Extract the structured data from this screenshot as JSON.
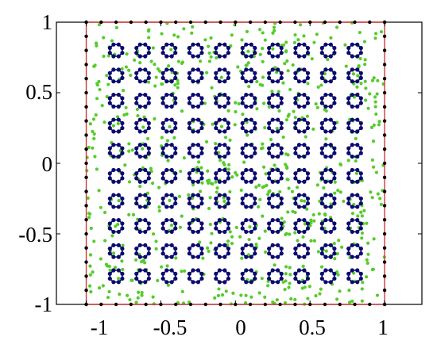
{
  "chart_data": {
    "type": "scatter",
    "title": "",
    "xlabel": "",
    "ylabel": "",
    "xlim": [
      -1.2,
      1.25
    ],
    "ylim": [
      -1,
      1
    ],
    "x_ticks": [
      -1,
      -0.5,
      0,
      0.5,
      1
    ],
    "y_ticks": [
      -1,
      -0.5,
      0,
      0.5,
      1
    ],
    "x_tick_labels": [
      "-1",
      "-0.5",
      "0",
      "0.5",
      "1"
    ],
    "y_tick_labels": [
      "-1",
      "-0.5",
      "0",
      "0.5",
      "1"
    ],
    "grid": false,
    "colors": {
      "boundary_line": "#d03a3a",
      "boundary_points": "#000000",
      "ring_points": "#0a0a6e",
      "interior_points": "#55cc2a"
    },
    "boundary": {
      "square": [
        [
          -1,
          -1
        ],
        [
          1,
          -1
        ],
        [
          1,
          1
        ],
        [
          -1,
          1
        ]
      ],
      "points_per_side": 21
    },
    "rings": {
      "centers_x": [
        -0.8,
        -0.622,
        -0.444,
        -0.267,
        -0.089,
        0.089,
        0.267,
        0.444,
        0.622,
        0.8
      ],
      "centers_y": [
        0.8,
        0.622,
        0.444,
        0.267,
        0.089,
        -0.089,
        -0.267,
        -0.444,
        -0.622,
        -0.8
      ],
      "radius": 0.045,
      "points_per_ring": 8
    },
    "interior_points": {
      "count": 700,
      "region": [
        [
          -1,
          -1
        ],
        [
          1,
          1
        ]
      ]
    }
  }
}
